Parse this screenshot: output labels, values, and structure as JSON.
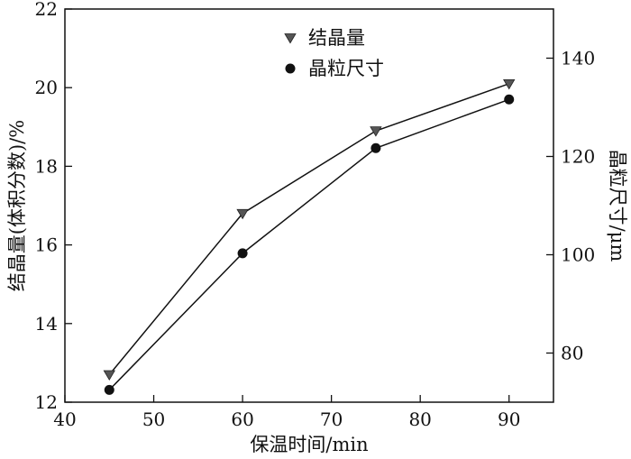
{
  "chart_data": {
    "type": "line",
    "x": [
      45,
      60,
      75,
      90
    ],
    "xlabel": "保温时间/min",
    "xlim": [
      40,
      95
    ],
    "xticks": [
      40,
      50,
      60,
      70,
      80,
      90
    ],
    "ylabel": "结晶量(体积分数)/%",
    "ylim": [
      12,
      22
    ],
    "yticks": [
      12,
      14,
      16,
      18,
      20,
      22
    ],
    "y2label": "晶粒尺寸/μm",
    "y2lim": [
      70,
      150
    ],
    "y2ticks": [
      80,
      100,
      120,
      140
    ],
    "grid": false,
    "legend_position": "top-center",
    "series": [
      {
        "name": "结晶量",
        "axis": "left",
        "marker": "triangle-down",
        "values": [
          12.7,
          16.8,
          18.9,
          20.1
        ],
        "color": "#555555"
      },
      {
        "name": "晶粒尺寸",
        "axis": "right",
        "marker": "circle",
        "values": [
          72.5,
          100.3,
          121.7,
          131.6
        ],
        "color": "#111111"
      }
    ]
  }
}
